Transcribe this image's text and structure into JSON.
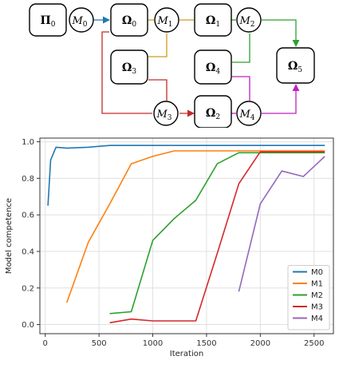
{
  "diagram": {
    "nodes": {
      "pi0": {
        "label": "Π",
        "sub": "0"
      },
      "omega0": {
        "label": "Ω",
        "sub": "0"
      },
      "omega1": {
        "label": "Ω",
        "sub": "1"
      },
      "omega2": {
        "label": "Ω",
        "sub": "2"
      },
      "omega3": {
        "label": "Ω",
        "sub": "3"
      },
      "omega4": {
        "label": "Ω",
        "sub": "4"
      },
      "omega5": {
        "label": "Ω",
        "sub": "5"
      },
      "m0": {
        "label": "M",
        "sub": "0"
      },
      "m1": {
        "label": "M",
        "sub": "1"
      },
      "m2": {
        "label": "M",
        "sub": "2"
      },
      "m3": {
        "label": "M",
        "sub": "3"
      },
      "m4": {
        "label": "M",
        "sub": "4"
      }
    },
    "edge_colors": {
      "blue": "#1f77b4",
      "orange": "#d49a1a",
      "green": "#2ca02c",
      "red": "#c42a2a",
      "purple": "#c020c0"
    }
  },
  "chart_data": {
    "type": "line",
    "xlabel": "Iteration",
    "ylabel": "Model competence",
    "xlim": [
      -50,
      2680
    ],
    "ylim": [
      -0.05,
      1.02
    ],
    "xticks": [
      0,
      500,
      1000,
      1500,
      2000,
      2500
    ],
    "yticks": [
      0.0,
      0.2,
      0.4,
      0.6,
      0.8,
      1.0
    ],
    "xtick_labels": [
      "0",
      "500",
      "1000",
      "1500",
      "2000",
      "2500"
    ],
    "ytick_labels": [
      "0.0",
      "0.2",
      "0.4",
      "0.6",
      "0.8",
      "1.0"
    ],
    "grid": true,
    "legend_position": "lower-right",
    "series": [
      {
        "name": "M0",
        "color": "#1f77b4",
        "x": [
          25,
          50,
          100,
          200,
          400,
          600,
          800,
          1000,
          1200,
          1400,
          1600,
          1800,
          2000,
          2200,
          2400,
          2600
        ],
        "y": [
          0.65,
          0.9,
          0.97,
          0.965,
          0.97,
          0.98,
          0.98,
          0.98,
          0.98,
          0.98,
          0.98,
          0.98,
          0.98,
          0.98,
          0.98,
          0.98
        ]
      },
      {
        "name": "M1",
        "color": "#ff7f0e",
        "x": [
          200,
          400,
          600,
          800,
          1000,
          1200,
          1400,
          1600,
          1800,
          2000,
          2200,
          2400,
          2600
        ],
        "y": [
          0.12,
          0.45,
          0.66,
          0.88,
          0.92,
          0.95,
          0.95,
          0.95,
          0.95,
          0.95,
          0.95,
          0.95,
          0.95
        ]
      },
      {
        "name": "M2",
        "color": "#2ca02c",
        "x": [
          600,
          800,
          1000,
          1200,
          1400,
          1600,
          1800,
          2000,
          2200,
          2400,
          2600
        ],
        "y": [
          0.06,
          0.07,
          0.46,
          0.58,
          0.68,
          0.88,
          0.94,
          0.94,
          0.94,
          0.94,
          0.94
        ]
      },
      {
        "name": "M3",
        "color": "#d62728",
        "x": [
          600,
          800,
          1000,
          1200,
          1400,
          1600,
          1800,
          2000,
          2200,
          2400,
          2600
        ],
        "y": [
          0.01,
          0.03,
          0.02,
          0.02,
          0.02,
          0.39,
          0.77,
          0.945,
          0.945,
          0.945,
          0.945
        ]
      },
      {
        "name": "M4",
        "color": "#9467bd",
        "x": [
          1800,
          2000,
          2200,
          2400,
          2600
        ],
        "y": [
          0.18,
          0.66,
          0.84,
          0.81,
          0.92
        ]
      }
    ]
  }
}
